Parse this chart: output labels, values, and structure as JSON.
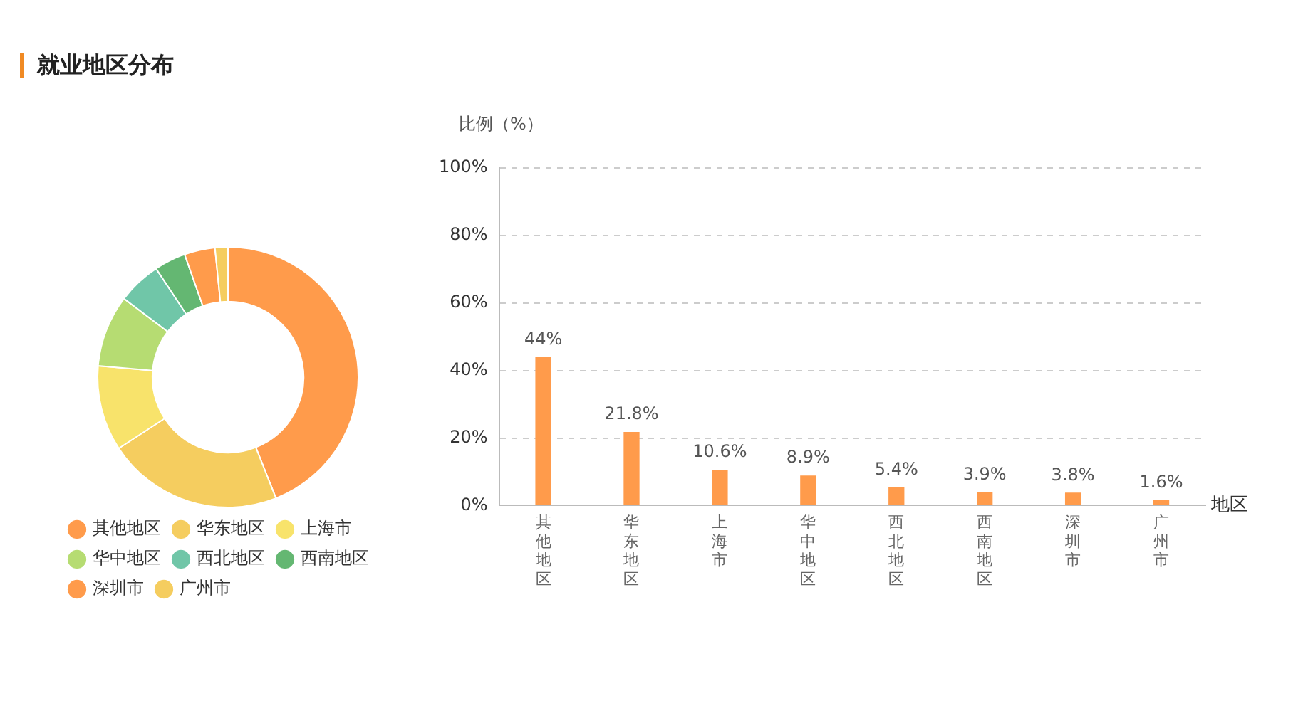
{
  "chart_data": [
    {
      "type": "donut",
      "title": "就业地区分布",
      "categories": [
        "其他地区",
        "华东地区",
        "上海市",
        "华中地区",
        "西北地区",
        "西南地区",
        "深圳市",
        "广州市"
      ],
      "values": [
        44,
        21.8,
        10.6,
        8.9,
        5.4,
        3.9,
        3.8,
        1.6
      ],
      "colors": [
        "#ff9b4b",
        "#f5cd5f",
        "#f8e36b",
        "#b6dc72",
        "#70c6a8",
        "#64b772",
        "#ff9b4b",
        "#f5cd5f"
      ],
      "legend": "bottom"
    },
    {
      "type": "bar",
      "ylabel": "比例（%）",
      "xlabel": "地区",
      "categories": [
        "其他地区",
        "华东地区",
        "上海市",
        "华中地区",
        "西北地区",
        "西南地区",
        "深圳市",
        "广州市"
      ],
      "values": [
        44,
        21.8,
        10.6,
        8.9,
        5.4,
        3.9,
        3.8,
        1.6
      ],
      "value_labels": [
        "44%",
        "21.8%",
        "10.6%",
        "8.9%",
        "5.4%",
        "3.9%",
        "3.8%",
        "1.6%"
      ],
      "color": "#ff9b4b",
      "ylim": [
        0,
        100
      ],
      "yticks": [
        {
          "value": 0,
          "label": "0%"
        },
        {
          "value": 20,
          "label": "20%"
        },
        {
          "value": 40,
          "label": "40%"
        },
        {
          "value": 60,
          "label": "60%"
        },
        {
          "value": 80,
          "label": "80%"
        },
        {
          "value": 100,
          "label": "100%"
        }
      ],
      "grid": "y",
      "legend": false
    }
  ]
}
